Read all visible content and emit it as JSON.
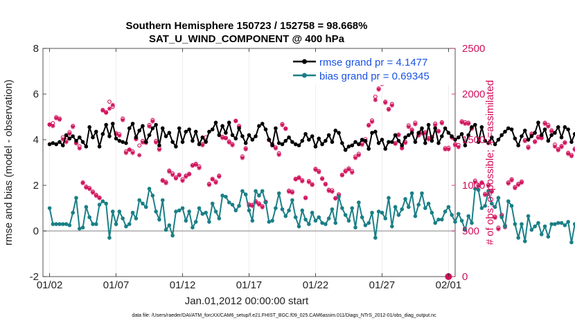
{
  "chart_data": {
    "type": "line",
    "title": "Southern Hemisphere 150723 / 152758 = 98.668%",
    "subtitle": "SAT_U_WIND_COMPONENT @ 400 hPa",
    "xlabel": "Jan.01,2012 00:00:00 start",
    "ylabel": "rmse and bias (model - observation)",
    "ylabel_right": "# of obs: o=possible; ∗=assimilated",
    "xlim": [
      0.5,
      31.5
    ],
    "ylim": [
      -2,
      8
    ],
    "ylim_right": [
      0,
      2500
    ],
    "x_ticks": [
      1,
      6,
      11,
      16,
      21,
      26,
      31
    ],
    "x_tick_labels": [
      "01/02",
      "01/07",
      "01/12",
      "01/17",
      "01/22",
      "01/27",
      "02/01"
    ],
    "y_ticks": [
      -2,
      0,
      2,
      4,
      6,
      8
    ],
    "y_ticks_right": [
      0,
      500,
      1000,
      1500,
      2000,
      2500
    ],
    "zero_line": 0,
    "legend": [
      "rmse grand pr = 4.1477",
      "bias grand pr = 0.69345"
    ],
    "colors": {
      "rmse": "#000000",
      "bias": "#1a7f86",
      "obs": "#d0105a",
      "legend_text": "#1a52e6",
      "zero_line": "#aaaaaa"
    },
    "x_step": 0.25,
    "rmse": [
      3.8,
      3.85,
      3.8,
      3.9,
      3.75,
      4.2,
      4.05,
      4.15,
      3.95,
      4.1,
      3.9,
      3.7,
      4.55,
      4.1,
      4.35,
      3.7,
      4.25,
      4.65,
      4.15,
      4.7,
      4.05,
      3.95,
      3.9,
      3.85,
      4.5,
      4.7,
      4.1,
      4.4,
      4.6,
      3.9,
      4.2,
      4.5,
      4.65,
      3.75,
      4.5,
      4.15,
      4.3,
      3.9,
      3.7,
      4.5,
      3.9,
      4.35,
      4.45,
      3.95,
      4.35,
      3.8,
      4.1,
      3.9,
      4.35,
      4.45,
      4.75,
      4.2,
      4.6,
      4.3,
      4.75,
      4.2,
      4.05,
      4.5,
      4.15,
      3.85,
      4.2,
      4.0,
      4.15,
      4.6,
      4.7,
      4.45,
      4.0,
      3.75,
      4.5,
      3.85,
      3.8,
      3.95,
      4.1,
      3.9,
      3.8,
      3.75,
      3.95,
      4.25,
      4.0,
      4.15,
      3.7,
      4.05,
      3.8,
      3.95,
      4.2,
      3.9,
      4.4,
      4.3,
      3.85,
      3.55,
      3.7,
      3.75,
      3.9,
      3.8,
      4.0,
      3.95,
      3.6,
      4.3,
      4.35,
      3.85,
      4.0,
      3.6,
      3.9,
      3.9,
      4.2,
      3.95,
      3.75,
      4.1,
      4.2,
      4.3,
      3.9,
      4.3,
      4.5,
      3.85,
      4.65,
      3.95,
      4.5,
      3.85,
      4.15,
      4.5,
      4.3,
      4.15,
      4.0,
      4.1,
      4.25,
      3.75,
      4.2,
      4.55,
      4.65,
      3.9,
      4.55,
      3.95,
      3.85,
      4.1,
      3.8,
      4.0,
      4.2,
      4.35,
      4.5,
      4.45,
      4.05,
      3.75,
      4.15,
      4.4,
      4.0,
      4.15,
      4.3,
      4.75,
      4.2,
      4.45,
      3.95,
      4.2,
      4.3,
      4.55,
      4.1,
      4.55,
      4.45,
      3.9,
      4.25,
      4.0,
      3.95,
      4.3,
      4.2,
      4.5,
      4.4,
      4.5,
      4.75,
      4.6,
      4.45,
      4.4,
      4.25,
      4.5,
      4.0,
      4.7,
      4.6,
      4.45,
      4.3,
      4.8,
      5.25,
      4.5,
      4.35,
      4.0,
      4.25,
      4.45,
      4.3,
      4.5,
      5.3,
      5.45,
      5.5,
      4.5,
      4.7,
      4.25,
      4.45,
      4.6,
      3.9,
      4.25,
      4.5,
      4.35,
      4.45,
      4.1,
      4.35,
      4.55,
      4.3,
      4.0,
      3.95,
      4.15,
      3.75,
      3.85,
      3.9
    ],
    "bias": [
      1.0,
      0.3,
      0.3,
      0.3,
      0.3,
      0.3,
      0.25,
      0.8,
      1.45,
      0.1,
      0.15,
      1.05,
      0.6,
      0.3,
      0.3,
      1.15,
      1.3,
      1.2,
      -0.3,
      0.85,
      0.3,
      0.85,
      0.55,
      0.2,
      0.3,
      0.8,
      0.55,
      1.35,
      1.2,
      1.05,
      1.85,
      1.55,
      0.85,
      0.5,
      1.35,
      0.05,
      0.25,
      -0.2,
      0.85,
      0.9,
      1.0,
      0.45,
      0.85,
      0.15,
      0.4,
      1.0,
      0.75,
      0.8,
      0.4,
      1.2,
      0.85,
      0.55,
      1.55,
      1.5,
      1.25,
      1.15,
      0.9,
      1.1,
      1.75,
      1.6,
      0.9,
      0.45,
      1.75,
      1.55,
      1.75,
      1.25,
      0.4,
      0.45,
      1.0,
      1.65,
      0.95,
      0.65,
      0.9,
      1.35,
      0.6,
      0.2,
      0.9,
      0.5,
      0.3,
      0.8,
      0.45,
      0.6,
      0.35,
      0.3,
      0.55,
      0.95,
      0.35,
      1.5,
      1.0,
      0.7,
      0.45,
      1.0,
      0.15,
      1.25,
      0.6,
      0.25,
      0.35,
      0.8,
      -0.3,
      0.85,
      0.8,
      0.55,
      1.45,
      0.2,
      1.05,
      0.7,
      0.95,
      1.4,
      1.05,
      1.65,
      0.65,
      1.15,
      1.65,
      1.0,
      1.2,
      0.8,
      0.35,
      0.5,
      0.5,
      0.85,
      1.05,
      0.7,
      0.4,
      0.75,
      0.45,
      0.05,
      0.65,
      0.35,
      1.85,
      1.8,
      1.0,
      1.1,
      1.75,
      1.2,
      1.05,
      1.45,
      0.6,
      0.2,
      1.3,
      1.1,
      0.3,
      -0.3,
      0.3,
      -0.45,
      0.65,
      0.05,
      0.2,
      0.35,
      -0.15,
      0.2,
      -0.25,
      0.3,
      0.3,
      0.35,
      0.35,
      0.25,
      0.4,
      -0.5,
      0.3,
      0.15,
      0.55,
      0.45,
      0.1,
      0.1,
      0.4,
      0.75,
      -0.15,
      0.5,
      -0.05,
      -0.6,
      -1.2,
      -0.25,
      0.45,
      0.15,
      0.45,
      0.3,
      1.05,
      0.4,
      0.95,
      0.2,
      0.15,
      -0.35,
      0.25,
      0.45,
      0.05,
      0.2,
      -0.05,
      1.0,
      0.5,
      0.05,
      0.5,
      -0.15,
      -0.05,
      -0.1,
      -0.5,
      -0.1,
      -0.2,
      -0.5,
      -0.3,
      -0.3,
      -0.25,
      0.15,
      0.55,
      0.5,
      0.05,
      -0.1,
      0.3,
      0.3,
      0.15,
      0.8,
      0.25,
      -0.25
    ],
    "obs_assimilated": [
      1665,
      1650,
      1735,
      1720,
      1505,
      1475,
      1565,
      1640,
      1460,
      1405,
      1025,
      975,
      960,
      920,
      885,
      860,
      1820,
      1795,
      1840,
      1880,
      1560,
      1545,
      1715,
      1355,
      1390,
      1355,
      1505,
      1330,
      1470,
      1465,
      1645,
      1700,
      1470,
      1390,
      1050,
      1025,
      1150,
      1115,
      1075,
      1110,
      1050,
      1095,
      1120,
      1215,
      1225,
      1190,
      1440,
      1485,
      1005,
      1065,
      1030,
      1095,
      1520,
      1515,
      1470,
      1440,
      1705,
      1640,
      1300,
      1395,
      780,
      775,
      815,
      790,
      760,
      815,
      1495,
      1440,
      1405,
      1335,
      1660,
      1620,
      930,
      920,
      1065,
      1080,
      1045,
      860,
      1035,
      1005,
      1170,
      1145,
      1070,
      1010,
      940,
      930,
      855,
      890,
      1110,
      1150,
      1175,
      1140,
      1300,
      1330,
      1445,
      1480,
      1655,
      1695,
      1935,
      2050,
      2110,
      1905,
      1830,
      1875,
      1455,
      1550,
      1405,
      1465,
      1640,
      1600,
      1670,
      1545,
      1570,
      1570,
      1505,
      1520,
      1660,
      1590,
      1680,
      1395,
      1395,
      1525,
      1440,
      1420,
      1690,
      1675,
      1675,
      1620,
      1035,
      990,
      1025,
      895,
      995,
      930,
      645,
      520,
      665,
      540,
      1020,
      1055,
      970,
      1005,
      1030,
      1485,
      1410,
      1555,
      1475,
      1520,
      1515,
      1675,
      1645,
      1590,
      1425,
      1385,
      1420,
      1465,
      1345,
      1320,
      1390,
      1345,
      1035,
      1040,
      1020,
      1045,
      1095,
      955,
      945,
      905,
      905,
      915,
      855,
      775,
      820,
      845,
      820,
      765,
      720,
      735,
      745,
      790,
      680,
      860,
      1030,
      1005,
      1070,
      980,
      1045,
      1000,
      1085,
      1040,
      1090,
      1055,
      1110,
      1080,
      1100,
      1095,
      1100,
      1075,
      1110,
      1055,
      1005,
      1030,
      1060,
      1045,
      1070,
      1085,
      1070,
      1085,
      1050,
      1095,
      1040,
      1050,
      1080,
      1080
    ],
    "obs_possible": [
      1655,
      1670,
      1735,
      1720,
      1515,
      1480,
      1570,
      1640,
      1455,
      1415,
      1020,
      975,
      960,
      920,
      885,
      855,
      1815,
      1790,
      1905,
      1850,
      1560,
      1550,
      1720,
      1360,
      1380,
      1360,
      1500,
      1425,
      1475,
      1465,
      1650,
      1705,
      1475,
      1395,
      1045,
      1025,
      1150,
      1120,
      1075,
      1105,
      1055,
      1095,
      1115,
      1210,
      1225,
      1195,
      1440,
      1515,
      1005,
      1060,
      1030,
      1095,
      1520,
      1510,
      1470,
      1440,
      1695,
      1640,
      1305,
      1395,
      780,
      775,
      815,
      790,
      760,
      810,
      1490,
      1440,
      1405,
      1340,
      1660,
      1610,
      930,
      920,
      1060,
      1075,
      1045,
      855,
      1035,
      1000,
      1170,
      1145,
      1065,
      1005,
      940,
      935,
      850,
      890,
      1105,
      1150,
      1175,
      1145,
      1305,
      1335,
      1450,
      1495,
      1650,
      1700,
      1960,
      2050,
      2115,
      1905,
      1825,
      1880,
      1450,
      1545,
      1400,
      1465,
      1645,
      1600,
      1675,
      1545,
      1570,
      1570,
      1505,
      1520,
      1665,
      1585,
      1680,
      1395,
      1400,
      1520,
      1440,
      1430,
      1690,
      1680,
      1675,
      1620,
      1040,
      990,
      1020,
      895,
      995,
      925,
      645,
      525,
      665,
      545,
      1020,
      1055,
      970,
      1005,
      1030,
      1485,
      1410,
      1555,
      1470,
      1520,
      1515,
      1675,
      1650,
      1590,
      1435,
      1385,
      1420,
      1460,
      1345,
      1320,
      1390,
      1340,
      1035,
      1040,
      1020,
      1045,
      1095,
      955,
      945,
      905,
      905,
      915,
      855,
      775,
      820,
      845,
      820,
      765,
      720,
      740,
      745,
      790,
      680,
      860,
      1025,
      1005,
      1070,
      980,
      1050,
      1000,
      1085,
      1040,
      1090,
      1120,
      1110,
      1080,
      1100,
      1095,
      1100,
      1080,
      1110,
      1055,
      1005,
      1030,
      1060,
      1045,
      1070,
      1085,
      1070,
      1085,
      1050,
      1095,
      1040,
      1050,
      1080,
      1080
    ],
    "obs_end_marker": {
      "x": 31,
      "value": 0
    }
  },
  "footer": "data file: /Users/raeder/DAI/ATM_forcXX/CAM6_setup/f.e21.FHIST_BGC.f09_025.CAM6assim.011/Diags_NTrS_2012-01/obs_diag_output.nc"
}
